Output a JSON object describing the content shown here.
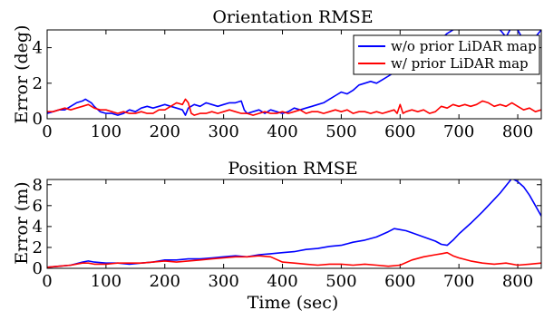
{
  "chart_data": [
    {
      "type": "line",
      "title": "Orientation RMSE",
      "xlabel": "",
      "ylabel": "Error (deg)",
      "xlim": [
        0,
        840
      ],
      "ylim": [
        0,
        5
      ],
      "xticks": [
        0,
        100,
        200,
        300,
        400,
        500,
        600,
        700,
        800
      ],
      "yticks": [
        0,
        2,
        4
      ],
      "grid": false,
      "legend_position": "top-right",
      "series": [
        {
          "name": "w/o prior LiDAR map",
          "color": "#0000ff",
          "x": [
            0,
            10,
            20,
            30,
            40,
            50,
            60,
            65,
            70,
            75,
            80,
            90,
            100,
            110,
            120,
            130,
            140,
            150,
            160,
            170,
            180,
            190,
            200,
            210,
            220,
            230,
            235,
            240,
            250,
            260,
            270,
            280,
            290,
            300,
            310,
            320,
            330,
            335,
            340,
            350,
            360,
            370,
            380,
            390,
            400,
            410,
            420,
            430,
            440,
            450,
            460,
            470,
            480,
            490,
            500,
            510,
            520,
            530,
            540,
            550,
            560,
            570,
            580,
            590,
            600,
            610,
            620,
            630,
            640,
            650,
            660,
            670,
            680,
            690,
            700,
            710,
            720,
            730,
            740,
            750,
            760,
            770,
            780,
            790,
            800,
            810,
            820,
            830,
            840
          ],
          "y": [
            0.3,
            0.4,
            0.5,
            0.5,
            0.7,
            0.9,
            1.0,
            1.1,
            1.0,
            0.9,
            0.7,
            0.4,
            0.3,
            0.3,
            0.2,
            0.3,
            0.5,
            0.4,
            0.6,
            0.7,
            0.6,
            0.7,
            0.8,
            0.7,
            0.6,
            0.5,
            0.2,
            0.6,
            0.8,
            0.7,
            0.9,
            0.8,
            0.7,
            0.8,
            0.9,
            0.9,
            1.0,
            0.5,
            0.3,
            0.4,
            0.5,
            0.3,
            0.5,
            0.4,
            0.3,
            0.4,
            0.6,
            0.5,
            0.6,
            0.7,
            0.8,
            0.9,
            1.1,
            1.3,
            1.5,
            1.4,
            1.6,
            1.9,
            2.0,
            2.1,
            2.0,
            2.2,
            2.4,
            2.6,
            2.9,
            3.4,
            3.5,
            3.6,
            3.4,
            3.9,
            4.3,
            4.5,
            4.8,
            5.0,
            5.5,
            5.7,
            5.8,
            5.7,
            5.9,
            5.2,
            5.5,
            5.0,
            4.6,
            5.2,
            5.0,
            4.4,
            4.2,
            4.6,
            5.0
          ]
        },
        {
          "name": "w/ prior LiDAR map",
          "color": "#ff0000",
          "x": [
            0,
            10,
            20,
            30,
            40,
            50,
            60,
            70,
            80,
            90,
            100,
            110,
            120,
            130,
            140,
            150,
            160,
            170,
            180,
            190,
            200,
            210,
            220,
            230,
            235,
            240,
            245,
            250,
            260,
            270,
            280,
            290,
            300,
            310,
            320,
            330,
            340,
            350,
            360,
            370,
            380,
            390,
            400,
            410,
            420,
            430,
            440,
            450,
            460,
            470,
            480,
            490,
            500,
            510,
            520,
            530,
            540,
            550,
            560,
            570,
            580,
            590,
            595,
            600,
            605,
            610,
            620,
            630,
            640,
            650,
            660,
            670,
            680,
            690,
            700,
            710,
            720,
            730,
            740,
            750,
            760,
            770,
            780,
            790,
            800,
            810,
            820,
            830,
            840
          ],
          "y": [
            0.4,
            0.4,
            0.5,
            0.6,
            0.5,
            0.6,
            0.7,
            0.8,
            0.6,
            0.5,
            0.5,
            0.4,
            0.3,
            0.4,
            0.3,
            0.3,
            0.4,
            0.3,
            0.3,
            0.5,
            0.5,
            0.7,
            0.9,
            0.8,
            1.1,
            0.9,
            0.3,
            0.2,
            0.3,
            0.3,
            0.4,
            0.3,
            0.4,
            0.5,
            0.4,
            0.3,
            0.3,
            0.2,
            0.3,
            0.4,
            0.3,
            0.3,
            0.4,
            0.3,
            0.4,
            0.5,
            0.3,
            0.4,
            0.4,
            0.3,
            0.4,
            0.5,
            0.4,
            0.5,
            0.3,
            0.4,
            0.4,
            0.3,
            0.4,
            0.3,
            0.4,
            0.5,
            0.3,
            0.8,
            0.3,
            0.4,
            0.5,
            0.4,
            0.5,
            0.3,
            0.4,
            0.7,
            0.6,
            0.8,
            0.7,
            0.8,
            0.7,
            0.8,
            1.0,
            0.9,
            0.7,
            0.8,
            0.7,
            0.9,
            0.7,
            0.5,
            0.6,
            0.4,
            0.5
          ]
        }
      ]
    },
    {
      "type": "line",
      "title": "Position RMSE",
      "xlabel": "Time (sec)",
      "ylabel": "Error (m)",
      "xlim": [
        0,
        840
      ],
      "ylim": [
        0,
        8.5
      ],
      "xticks": [
        0,
        100,
        200,
        300,
        400,
        500,
        600,
        700,
        800
      ],
      "yticks": [
        0,
        2,
        4,
        6,
        8
      ],
      "grid": false,
      "legend_position": "none",
      "series": [
        {
          "color": "#0000ff",
          "x": [
            0,
            20,
            40,
            60,
            70,
            80,
            100,
            120,
            140,
            160,
            180,
            200,
            220,
            240,
            260,
            280,
            300,
            320,
            340,
            360,
            380,
            400,
            420,
            440,
            460,
            480,
            500,
            520,
            540,
            560,
            580,
            590,
            600,
            610,
            620,
            640,
            660,
            670,
            680,
            690,
            700,
            720,
            740,
            760,
            770,
            780,
            790,
            800,
            810,
            820,
            830,
            840
          ],
          "y": [
            0.1,
            0.2,
            0.3,
            0.6,
            0.7,
            0.6,
            0.5,
            0.5,
            0.4,
            0.5,
            0.6,
            0.8,
            0.8,
            0.9,
            0.9,
            1.0,
            1.1,
            1.2,
            1.1,
            1.3,
            1.4,
            1.5,
            1.6,
            1.8,
            1.9,
            2.1,
            2.2,
            2.5,
            2.7,
            3.0,
            3.5,
            3.8,
            3.7,
            3.6,
            3.4,
            3.0,
            2.6,
            2.3,
            2.2,
            2.7,
            3.3,
            4.3,
            5.4,
            6.6,
            7.2,
            7.9,
            8.6,
            8.3,
            7.8,
            7.0,
            6.0,
            5.0
          ]
        },
        {
          "color": "#ff0000",
          "x": [
            0,
            20,
            40,
            60,
            70,
            80,
            100,
            120,
            140,
            160,
            180,
            200,
            220,
            240,
            260,
            280,
            300,
            320,
            340,
            360,
            380,
            400,
            420,
            440,
            460,
            480,
            500,
            520,
            540,
            560,
            580,
            600,
            620,
            640,
            660,
            670,
            680,
            690,
            700,
            720,
            740,
            760,
            780,
            800,
            820,
            840
          ],
          "y": [
            0.1,
            0.2,
            0.3,
            0.5,
            0.5,
            0.4,
            0.4,
            0.5,
            0.5,
            0.5,
            0.6,
            0.7,
            0.6,
            0.7,
            0.8,
            0.9,
            1.0,
            1.1,
            1.1,
            1.2,
            1.1,
            0.6,
            0.5,
            0.4,
            0.3,
            0.4,
            0.4,
            0.3,
            0.4,
            0.3,
            0.2,
            0.3,
            0.8,
            1.1,
            1.3,
            1.4,
            1.5,
            1.2,
            1.0,
            0.7,
            0.5,
            0.4,
            0.5,
            0.3,
            0.4,
            0.5
          ]
        }
      ]
    }
  ]
}
